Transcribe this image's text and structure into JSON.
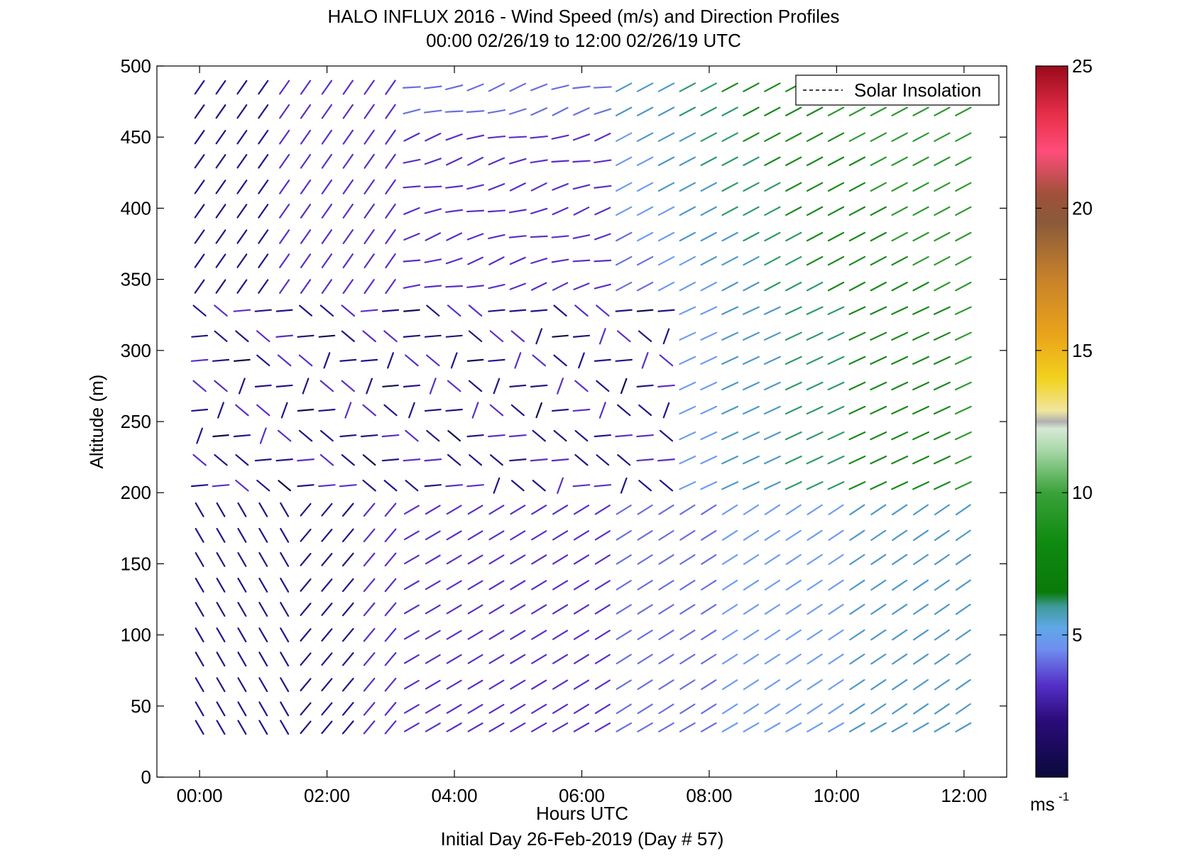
{
  "chart_data": {
    "type": "wind-barb profile",
    "title_line1": "HALO INFLUX 2016 - Wind Speed (m/s) and Direction Profiles",
    "title_line2": "00:00 02/26/19 to 12:00 02/26/19  UTC",
    "xlabel": "Hours UTC",
    "xlabel_sub": "Initial Day 26-Feb-2019 (Day # 57)",
    "ylabel": "Altitude (m)",
    "x_ticks": [
      "00:00",
      "02:00",
      "04:00",
      "06:00",
      "08:00",
      "10:00",
      "12:00"
    ],
    "y_ticks": [
      "0",
      "50",
      "100",
      "150",
      "200",
      "250",
      "300",
      "350",
      "400",
      "450",
      "500"
    ],
    "xlim_hours": [
      -0.67,
      12.67
    ],
    "ylim": [
      0,
      500
    ],
    "legend": {
      "label": "Solar Insolation",
      "placement": "top-right"
    },
    "colorbar": {
      "label": "ms",
      "label_exponent": "-1",
      "range": [
        0,
        25
      ],
      "ticks": [
        "5",
        "10",
        "15",
        "20",
        "25"
      ]
    },
    "time_step_hours": 0.333,
    "altitudes_m": [
      35,
      48,
      65,
      83,
      100,
      118,
      135,
      153,
      170,
      188,
      205,
      223,
      240,
      258,
      275,
      293,
      310,
      328,
      345,
      363,
      380,
      398,
      415,
      433,
      450,
      468,
      485
    ],
    "speed_regimes": [
      "low levels: 1.5-3 m/s early, increasing to 4-6 m/s after 08:00",
      "mid levels 200-330 m: 1-2.5 m/s northerly/westerly before 08:00, 5-9 m/s southwesterly after 08:00",
      "upper levels 330-500 m: 2-4 m/s before 06:00, 4-10 m/s after 06:00"
    ]
  }
}
